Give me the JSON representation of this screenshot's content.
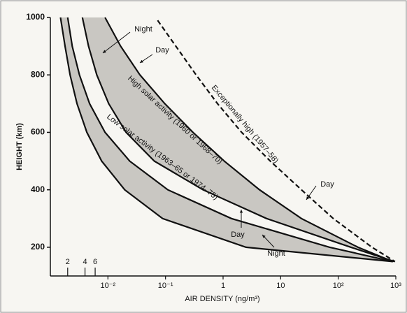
{
  "chart_data": {
    "type": "line",
    "x_label": "AIR DENSITY (ng/m³)",
    "y_label": "HEIGHT (km)",
    "xscale": "log",
    "xlim": [
      0.001,
      1000
    ],
    "ylim": [
      100,
      1000
    ],
    "xticks": [
      {
        "value": 0.002,
        "label": "2"
      },
      {
        "value": 0.004,
        "label": "4"
      },
      {
        "value": 0.006,
        "label": "6"
      },
      {
        "value": 0.01,
        "label": "10⁻²"
      },
      {
        "value": 0.1,
        "label": "10⁻¹"
      },
      1,
      10,
      {
        "value": 100,
        "label": "10²"
      },
      {
        "value": 1000,
        "label": "10³"
      }
    ],
    "yticks": [
      200,
      400,
      600,
      800,
      1000
    ],
    "bands": [
      [
        0,
        1
      ],
      [
        2,
        3
      ]
    ],
    "band_color": "#c9c7c2",
    "series": [
      {
        "color": "#111111",
        "dash": false,
        "x": [
          0.0015,
          0.0018,
          0.0022,
          0.0029,
          0.0043,
          0.0078,
          0.0196,
          0.089,
          2.5,
          890
        ],
        "values": [
          1000,
          900,
          800,
          700,
          600,
          500,
          400,
          300,
          200,
          150
        ]
      },
      {
        "color": "#111111",
        "dash": false,
        "x": [
          0.002,
          0.0024,
          0.0032,
          0.0048,
          0.0089,
          0.0239,
          0.11,
          1.4,
          71,
          890
        ],
        "values": [
          1000,
          900,
          800,
          700,
          600,
          500,
          400,
          300,
          200,
          150
        ]
      },
      {
        "color": "#111111",
        "dash": false,
        "x": [
          0.0036,
          0.0046,
          0.0064,
          0.0103,
          0.0207,
          0.064,
          0.45,
          5.7,
          166,
          950
        ],
        "values": [
          1000,
          900,
          800,
          700,
          600,
          500,
          400,
          300,
          200,
          150
        ]
      },
      {
        "color": "#111111",
        "dash": false,
        "x": [
          0.0089,
          0.0166,
          0.036,
          0.097,
          0.3,
          1.05,
          4.3,
          23,
          220,
          890
        ],
        "values": [
          1000,
          900,
          800,
          700,
          600,
          500,
          400,
          300,
          200,
          150
        ]
      },
      {
        "color": "#111111",
        "dash": true,
        "x": [
          0.073,
          0.34,
          0.8,
          2.1,
          6.6,
          23,
          82,
          385,
          970
        ],
        "values": [
          990,
          800,
          700,
          600,
          500,
          400,
          300,
          200,
          150
        ]
      }
    ],
    "annotations": [
      "Night",
      "Day",
      "High solar activity (1960 or 1968–70)",
      "Exceptionally high (1957–58)",
      "Low solar activity (1963–65 or 1974–75)",
      "Day",
      "Day",
      "Night"
    ]
  }
}
